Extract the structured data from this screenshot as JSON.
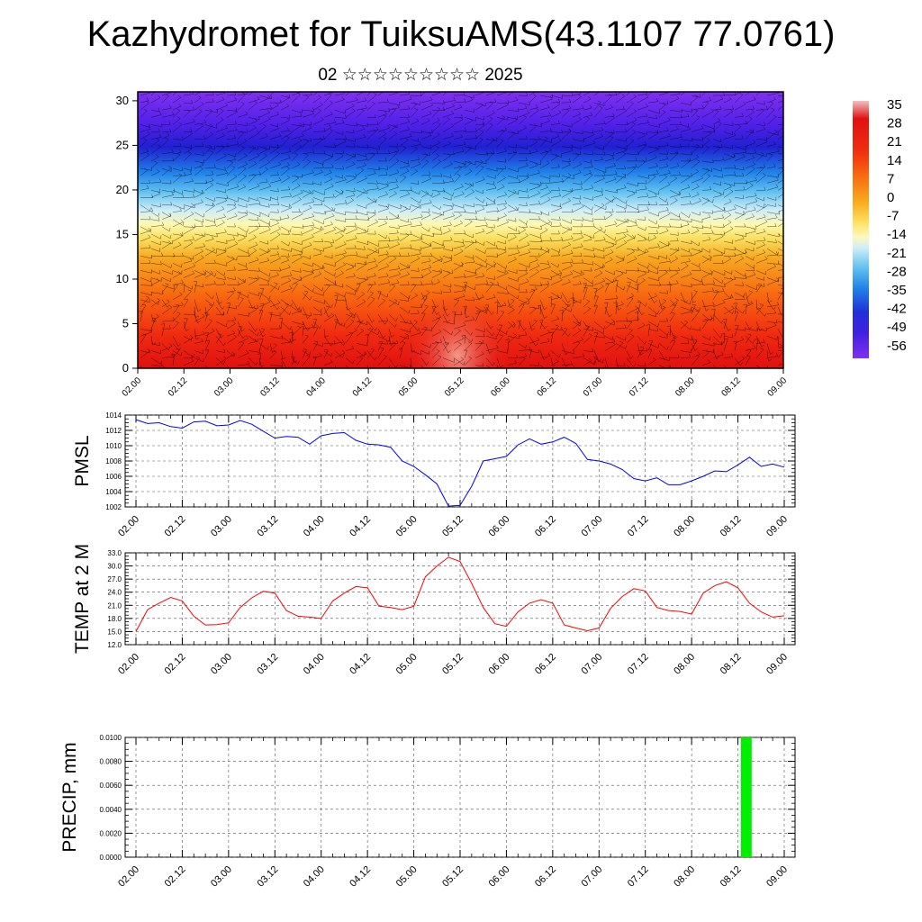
{
  "header": {
    "title": "Kazhydromet for TuiksuAMS(43.1107 77.0761)",
    "subtitle": "02 ☆☆☆☆☆☆☆☆☆ 2025"
  },
  "time_labels": [
    "02.00",
    "02.12",
    "03.00",
    "03.12",
    "04.00",
    "04.12",
    "05.00",
    "05.12",
    "06.00",
    "06.12",
    "07.00",
    "07.12",
    "08.00",
    "08.12",
    "09.00"
  ],
  "chart_data": [
    {
      "type": "heatmap",
      "id": "cross-section",
      "title": "",
      "ylim": [
        0,
        31
      ],
      "y_ticks": [
        0,
        5,
        10,
        15,
        20,
        25,
        30
      ],
      "x_ticks": [
        "02.00",
        "02.12",
        "03.00",
        "03.12",
        "04.00",
        "04.12",
        "05.00",
        "05.12",
        "06.00",
        "06.12",
        "07.00",
        "07.12",
        "08.00",
        "08.12",
        "09.00"
      ],
      "colorbar": {
        "labels": [
          "35",
          "28",
          "21",
          "14",
          "7",
          "0",
          "-7",
          "-14",
          "-21",
          "-28",
          "-35",
          "-42",
          "-49",
          "-56"
        ],
        "colors": [
          "#f0b0b0",
          "#e01010",
          "#f04010",
          "#f87010",
          "#f8a010",
          "#f8d030",
          "#fff080",
          "#d8f0f8",
          "#80d0f0",
          "#30a8f0",
          "#2060e0",
          "#3020e0",
          "#6020f0",
          "#8030f0"
        ]
      }
    },
    {
      "type": "line",
      "id": "pmsl",
      "ylabel": "PMSL",
      "ylim": [
        1002,
        1014
      ],
      "y_ticks": [
        "1014",
        "1012",
        "1010",
        "1008",
        "1006",
        "1004",
        "1002"
      ],
      "color": "#0000ff",
      "values": [
        1013.4,
        1012.9,
        1013.0,
        1012.5,
        1012.3,
        1013.1,
        1013.2,
        1012.6,
        1012.7,
        1013.3,
        1012.8,
        1011.9,
        1011.0,
        1011.2,
        1011.1,
        1010.2,
        1011.3,
        1011.6,
        1011.7,
        1010.7,
        1010.2,
        1010.1,
        1009.8,
        1008.0,
        1007.3,
        1006.2,
        1005.0,
        1002.1,
        1002.2,
        1004.7,
        1008.0,
        1008.3,
        1008.6,
        1010.1,
        1010.9,
        1010.2,
        1010.5,
        1011.1,
        1010.3,
        1008.2,
        1008.0,
        1007.6,
        1006.9,
        1005.7,
        1005.4,
        1005.8,
        1004.9,
        1004.9,
        1005.4,
        1006.0,
        1006.7,
        1006.6,
        1007.5,
        1008.5,
        1007.3,
        1007.6,
        1007.2
      ]
    },
    {
      "type": "line",
      "id": "temp",
      "ylabel": "TEMP at 2 M",
      "ylim": [
        12.0,
        33.0
      ],
      "y_ticks": [
        "33.0",
        "30.0",
        "27.0",
        "24.0",
        "21.0",
        "18.0",
        "15.0",
        "12.0"
      ],
      "color": "#ff0000",
      "values": [
        15.0,
        20.0,
        21.5,
        22.8,
        22.0,
        18.5,
        16.5,
        16.6,
        17.0,
        20.5,
        22.7,
        24.2,
        23.8,
        19.8,
        18.5,
        18.3,
        18.0,
        22.0,
        23.8,
        25.3,
        25.0,
        20.8,
        20.5,
        20.0,
        20.8,
        27.5,
        30.0,
        32.0,
        31.0,
        26.0,
        20.5,
        16.8,
        16.2,
        19.5,
        21.5,
        22.3,
        21.5,
        16.5,
        15.8,
        15.2,
        15.8,
        20.3,
        23.0,
        24.8,
        24.3,
        20.5,
        19.8,
        19.6,
        19.0,
        23.8,
        25.5,
        26.4,
        25.0,
        21.5,
        19.5,
        18.3,
        18.6
      ]
    },
    {
      "type": "bar",
      "id": "precip",
      "ylabel": "PRECIP, mm",
      "ylim": [
        0,
        0.01
      ],
      "y_ticks": [
        "0.0100",
        "0.0080",
        "0.0060",
        "0.0040",
        "0.0020",
        "0.0000"
      ],
      "color": "#00ee00",
      "bars": [
        {
          "time_index": 13.0,
          "value": 0.01
        }
      ]
    }
  ]
}
